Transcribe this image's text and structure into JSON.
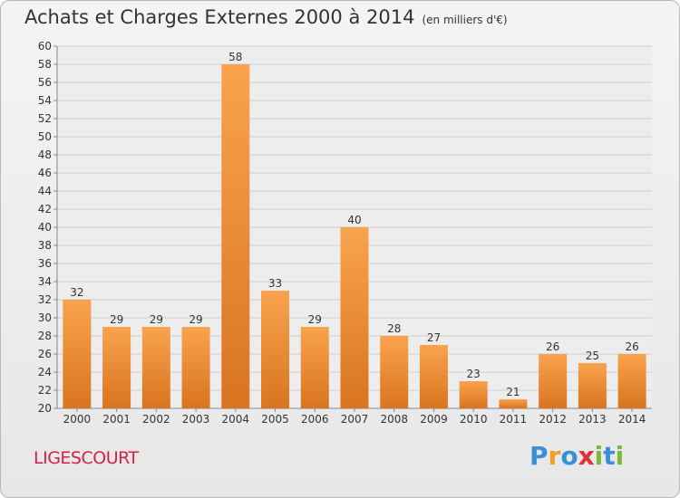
{
  "title": "Achats et Charges Externes 2000 à 2014",
  "subtitle": "(en milliers d'€)",
  "commune": "LIGESCOURT",
  "brand": {
    "letters": [
      "P",
      "r",
      "o",
      "x",
      "i",
      "t",
      "i"
    ],
    "colors": [
      "#3a8fd6",
      "#f0a020",
      "#3a8fd6",
      "#e03030",
      "#7ab83a",
      "#3a8fd6",
      "#7ab83a"
    ]
  },
  "colors": {
    "bar_light": "#f9a34e",
    "bar_dark": "#d9741f",
    "axis": "#888888",
    "grid": "#d0d0d0"
  },
  "chart_data": {
    "type": "bar",
    "categories": [
      "2000",
      "2001",
      "2002",
      "2003",
      "2004",
      "2005",
      "2006",
      "2007",
      "2008",
      "2009",
      "2010",
      "2011",
      "2012",
      "2013",
      "2014"
    ],
    "values": [
      32,
      29,
      29,
      29,
      58,
      33,
      29,
      40,
      28,
      27,
      23,
      21,
      26,
      25,
      26
    ],
    "ylim": [
      20,
      60
    ],
    "ytick_step": 2,
    "grid": true,
    "title": "Achats et Charges Externes 2000 à 2014",
    "xlabel": "",
    "ylabel": ""
  }
}
